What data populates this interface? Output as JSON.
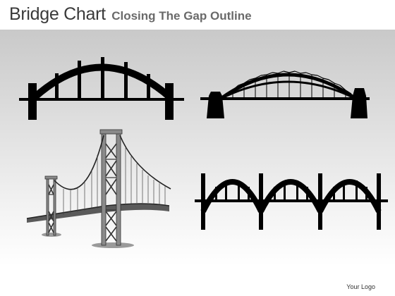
{
  "slide": {
    "title": "Bridge Chart",
    "subtitle": "Closing The Gap Outline",
    "logo_text": "Your Logo"
  },
  "icons": [
    {
      "name": "arch-bridge-icon"
    },
    {
      "name": "truss-arch-bridge-icon"
    },
    {
      "name": "suspension-bridge-icon"
    },
    {
      "name": "multi-arch-bridge-icon"
    }
  ],
  "colors": {
    "title": "#3a3a3a",
    "subtitle": "#6a6a6a",
    "silhouette": "#000000",
    "suspension_tower": "#8a8a8a"
  }
}
